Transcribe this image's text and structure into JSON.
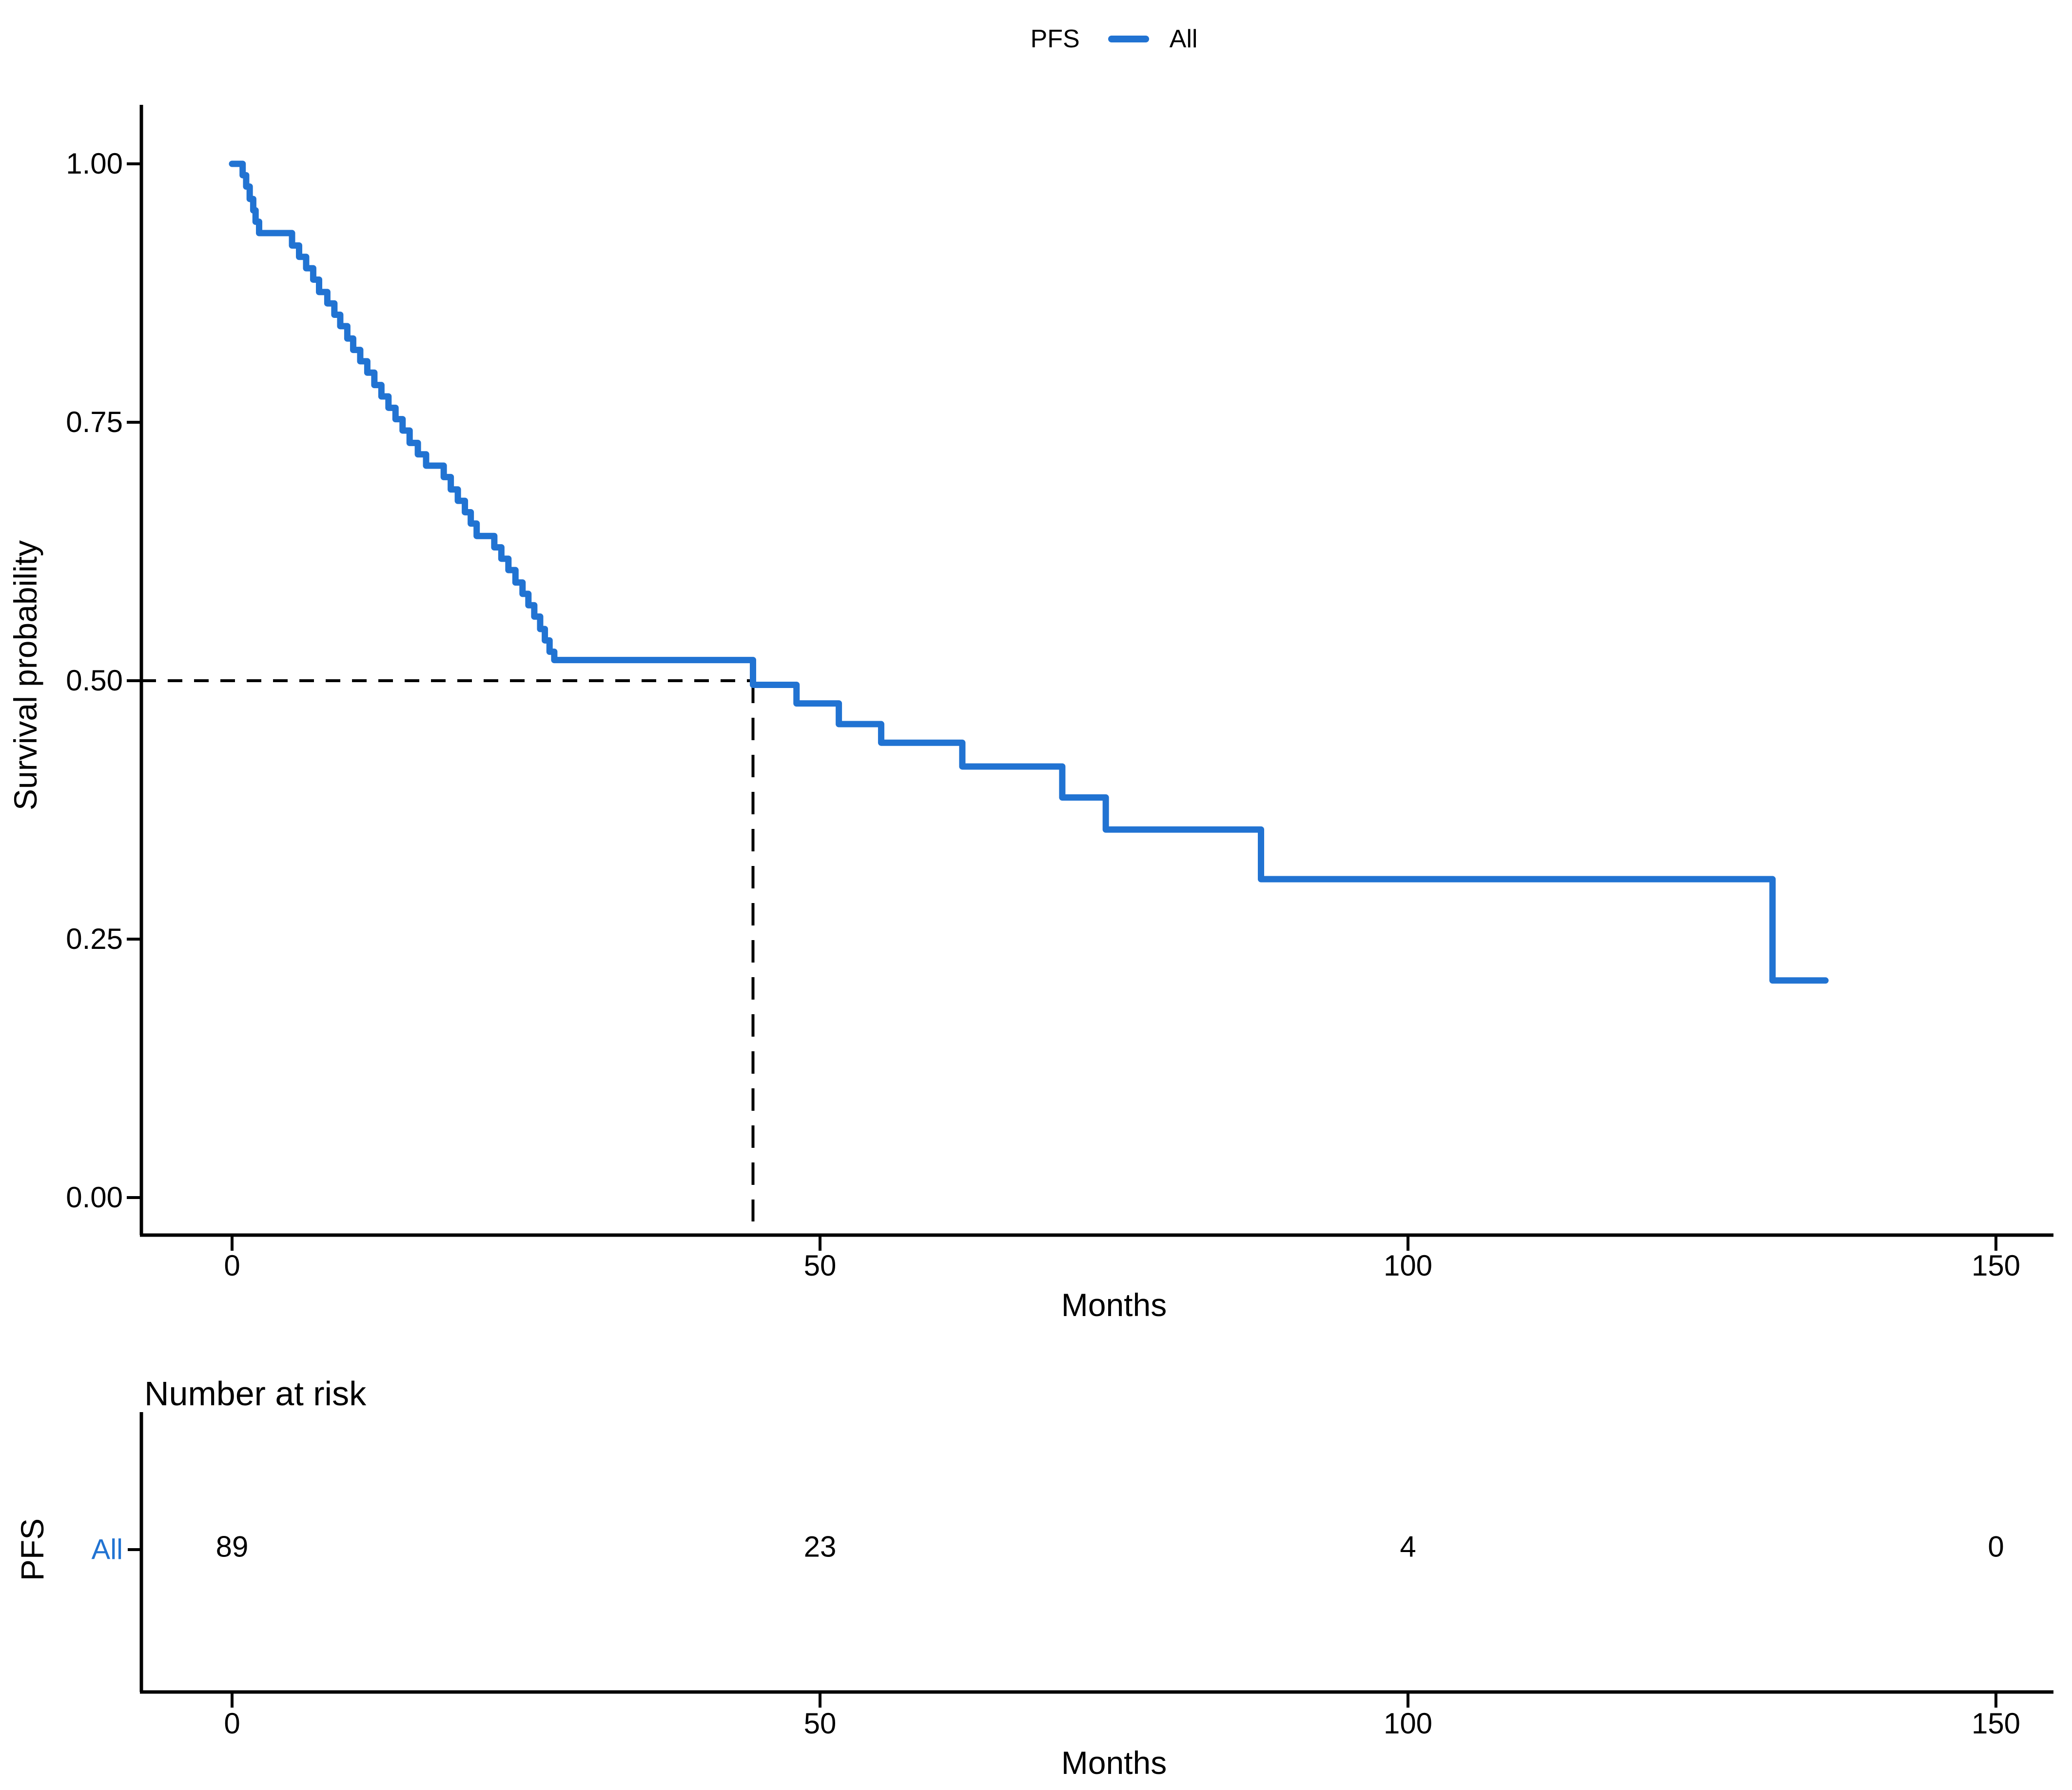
{
  "chart_data": {
    "type": "line",
    "subtype": "kaplan-meier-step",
    "title": "",
    "xlabel": "Months",
    "ylabel": "Survival probability",
    "xlim": [
      0,
      150
    ],
    "ylim": [
      0.0,
      1.0
    ],
    "x_ticks": [
      0,
      50,
      100,
      150
    ],
    "y_ticks": [
      1.0,
      0.75,
      0.5,
      0.25,
      0.0
    ],
    "grid": false,
    "legend_position": "top",
    "series": [
      {
        "name": "All",
        "group_title": "PFS",
        "color": "#2173D2",
        "steps": [
          [
            0,
            1.0
          ],
          [
            0.9,
            0.989
          ],
          [
            1.2,
            0.978
          ],
          [
            1.5,
            0.966
          ],
          [
            1.8,
            0.955
          ],
          [
            2.0,
            0.944
          ],
          [
            2.3,
            0.933
          ],
          [
            5.1,
            0.921
          ],
          [
            5.7,
            0.91
          ],
          [
            6.3,
            0.899
          ],
          [
            6.9,
            0.888
          ],
          [
            7.4,
            0.876
          ],
          [
            8.1,
            0.865
          ],
          [
            8.7,
            0.854
          ],
          [
            9.2,
            0.843
          ],
          [
            9.8,
            0.831
          ],
          [
            10.3,
            0.82
          ],
          [
            10.9,
            0.809
          ],
          [
            11.5,
            0.798
          ],
          [
            12.1,
            0.786
          ],
          [
            12.7,
            0.775
          ],
          [
            13.3,
            0.764
          ],
          [
            13.9,
            0.753
          ],
          [
            14.5,
            0.742
          ],
          [
            15.1,
            0.73
          ],
          [
            15.8,
            0.719
          ],
          [
            16.5,
            0.708
          ],
          [
            18.0,
            0.697
          ],
          [
            18.6,
            0.685
          ],
          [
            19.2,
            0.674
          ],
          [
            19.8,
            0.663
          ],
          [
            20.3,
            0.652
          ],
          [
            20.8,
            0.64
          ],
          [
            22.3,
            0.629
          ],
          [
            22.9,
            0.618
          ],
          [
            23.5,
            0.607
          ],
          [
            24.1,
            0.595
          ],
          [
            24.7,
            0.584
          ],
          [
            25.2,
            0.573
          ],
          [
            25.7,
            0.562
          ],
          [
            26.2,
            0.55
          ],
          [
            26.6,
            0.539
          ],
          [
            27.0,
            0.528
          ],
          [
            27.4,
            0.52
          ],
          [
            44.3,
            0.496
          ],
          [
            48.0,
            0.478
          ],
          [
            51.6,
            0.458
          ],
          [
            55.2,
            0.44
          ],
          [
            62.1,
            0.417
          ],
          [
            70.6,
            0.387
          ],
          [
            74.3,
            0.356
          ],
          [
            87.5,
            0.308
          ],
          [
            131.0,
            0.21
          ]
        ],
        "end_time": 135.5
      }
    ],
    "median_line": {
      "time": 44.3,
      "survival": 0.5,
      "style": "dashed",
      "color": "#000000"
    }
  },
  "legend": {
    "title": "PFS",
    "series_label": "All"
  },
  "main_plot": {
    "y_axis": {
      "label": "Survival probability",
      "ticks": [
        "1.00",
        "0.75",
        "0.50",
        "0.25",
        "0.00"
      ]
    },
    "x_axis": {
      "label": "Months",
      "ticks": [
        "0",
        "50",
        "100",
        "150"
      ]
    }
  },
  "risk_table": {
    "title": "Number at risk",
    "group_label": "PFS",
    "row_label": "All",
    "values": [
      "89",
      "23",
      "4",
      "0"
    ],
    "x_axis": {
      "label": "Months",
      "ticks": [
        "0",
        "50",
        "100",
        "150"
      ]
    }
  },
  "colors": {
    "series_blue": "#2173D2",
    "axis_black": "#000000"
  }
}
